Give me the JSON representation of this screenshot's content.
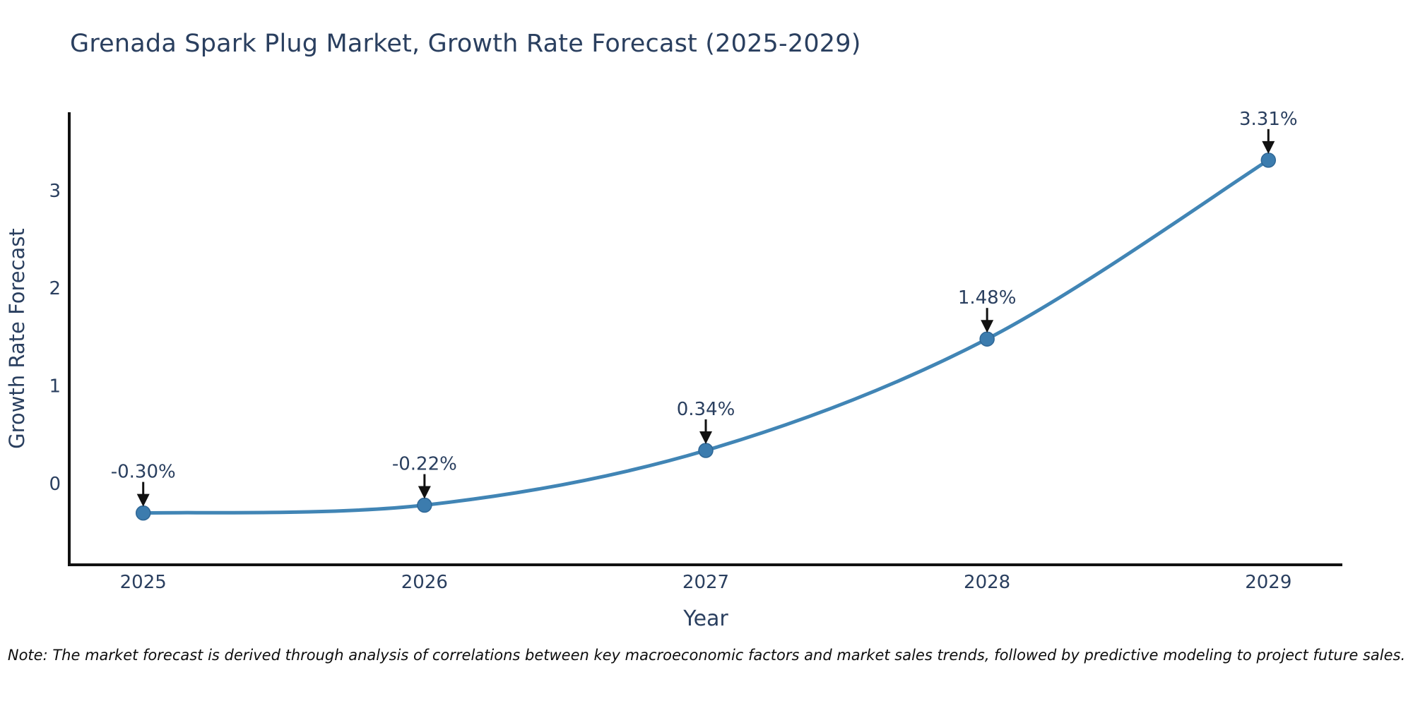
{
  "chart_data": {
    "type": "line",
    "title": "Grenada Spark Plug Market, Growth Rate Forecast (2025-2029)",
    "xlabel": "Year",
    "ylabel": "Growth Rate Forecast",
    "categories": [
      "2025",
      "2026",
      "2027",
      "2028",
      "2029"
    ],
    "x": [
      2025,
      2026,
      2027,
      2028,
      2029
    ],
    "series": [
      {
        "name": "Growth Rate Forecast",
        "values": [
          -0.3,
          -0.22,
          0.34,
          1.48,
          3.31
        ],
        "point_labels": [
          "-0.30%",
          "-0.22%",
          "0.34%",
          "1.48%",
          "3.31%"
        ]
      }
    ],
    "yticks": [
      "0",
      "1",
      "2",
      "3"
    ],
    "ytick_values": [
      0,
      1,
      2,
      3
    ],
    "xlim": [
      2024.737,
      2029.263
    ],
    "ylim": [
      -0.83,
      3.8
    ],
    "grid": false,
    "legend_position": "none",
    "line_shape": "spline",
    "colors": {
      "line": "#4185b5",
      "marker": "#3c7cae",
      "marker_edge": "#2f6796",
      "axis": "#111111",
      "arrow": "#111111",
      "text": "#2a3f5f"
    },
    "note": "Note: The market forecast is derived through analysis of correlations between key macroeconomic factors and market sales trends, followed by predictive modeling to project future sales."
  }
}
